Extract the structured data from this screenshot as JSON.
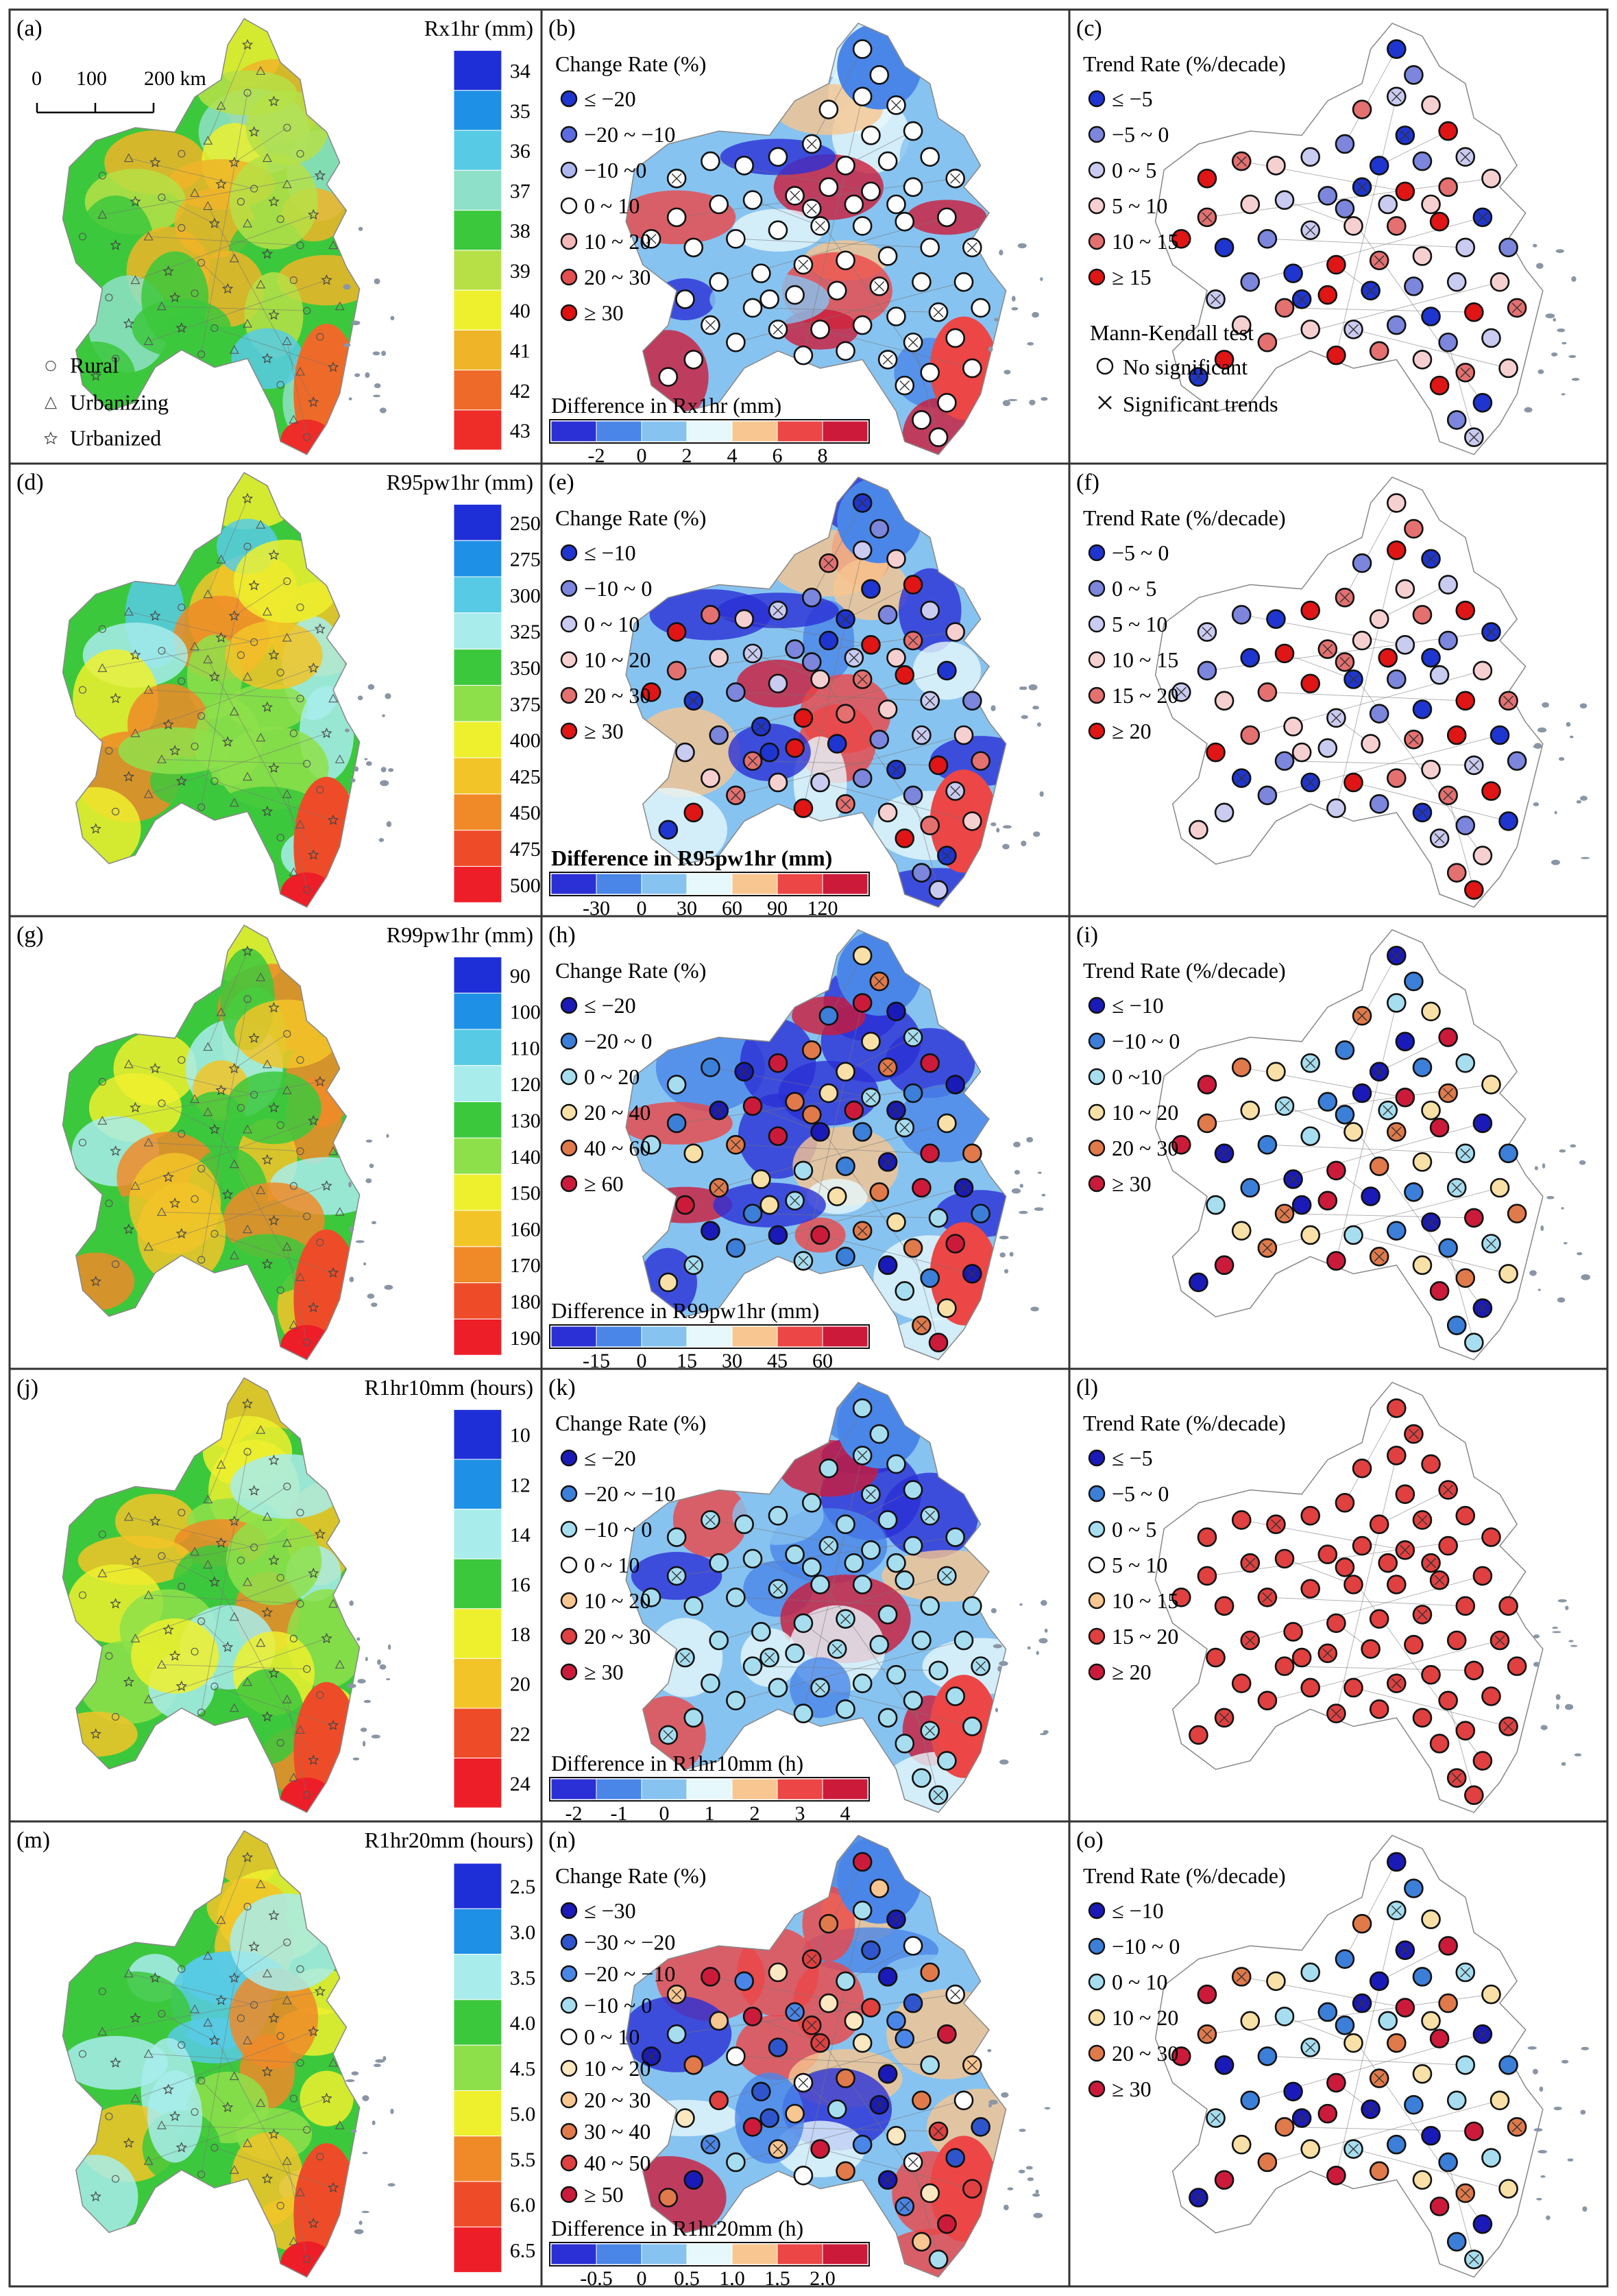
{
  "colors": {
    "frame": "#333333",
    "boundary": "#777777",
    "coast_island": "#8a96a6"
  },
  "panels": [
    {
      "letter": "(a)",
      "kind": "map",
      "variable": "Rx1hr",
      "title": "Rx1hr (mm)",
      "palette": "temp",
      "ticks": [
        "34",
        "35",
        "36",
        "37",
        "38",
        "39",
        "40",
        "41",
        "42",
        "43"
      ],
      "scale": {
        "ticks": [
          "0",
          "100",
          "200 km"
        ]
      },
      "site_legend": [
        "Rural",
        "Urbanizing",
        "Urbanized"
      ]
    },
    {
      "letter": "(b)",
      "kind": "change",
      "title": "Change Rate (%)",
      "items": [
        "≤ −20",
        "−20 ~ −10",
        "−10 ~0",
        "0 ~ 10",
        "10 ~ 20",
        "20 ~ 30",
        "≥ 30"
      ],
      "item_colors": [
        "#1e35d0",
        "#5a6ce0",
        "#aeb8f0",
        "#ffffff",
        "#f4b8b8",
        "#e45050",
        "#e01010"
      ],
      "diff_title": "Difference in Rx1hr (mm)",
      "diff_ticks": [
        "-2",
        "0",
        "2",
        "4",
        "6",
        "8"
      ],
      "diff_colors": [
        "#2b2fd6",
        "#4a86e8",
        "#87c3f0",
        "#e6f8fb",
        "#f8c690",
        "#ec4646",
        "#cc1b3a"
      ]
    },
    {
      "letter": "(c)",
      "kind": "trend",
      "title": "Trend Rate (%/decade)",
      "items": [
        "≤ −5",
        "−5 ~ 0",
        "0 ~ 5",
        "5 ~ 10",
        "10 ~ 15",
        "≥ 15"
      ],
      "item_colors": [
        "#1e35d0",
        "#7b86dc",
        "#c9cbf0",
        "#f6d0d0",
        "#e47070",
        "#e01515"
      ],
      "mk_title": "Mann-Kendall test",
      "mk_items": [
        "No significant",
        "Significant trends"
      ]
    },
    {
      "letter": "(d)",
      "kind": "map",
      "variable": "R95pw1hr",
      "title": "R95pw1hr (mm)",
      "palette": "precip",
      "ticks": [
        "250",
        "275",
        "300",
        "325",
        "350",
        "375",
        "400",
        "425",
        "450",
        "475",
        "500"
      ]
    },
    {
      "letter": "(e)",
      "kind": "change",
      "title": "Change Rate (%)",
      "items": [
        "≤ −10",
        "−10 ~ 0",
        "0 ~ 10",
        "10 ~ 20",
        "20 ~ 30",
        "≥ 30"
      ],
      "item_colors": [
        "#1e35d0",
        "#7b86dc",
        "#c9cbf0",
        "#f6d0d0",
        "#e47070",
        "#e01515"
      ],
      "diff_title": "Difference in R95pw1hr (mm)",
      "diff_bold": true,
      "diff_ticks": [
        "-30",
        "0",
        "30",
        "60",
        "90",
        "120"
      ],
      "diff_colors": [
        "#2b2fd6",
        "#4a86e8",
        "#87c3f0",
        "#e6f8fb",
        "#f8c690",
        "#ec4646",
        "#cc1b3a"
      ]
    },
    {
      "letter": "(f)",
      "kind": "trend",
      "title": "Trend Rate (%/decade)",
      "items": [
        "−5 ~ 0",
        "0 ~ 5",
        "5 ~ 10",
        "10 ~ 15",
        "15 ~ 20",
        "≥ 20"
      ],
      "item_colors": [
        "#1e35d0",
        "#7b86dc",
        "#c9cbf0",
        "#f6d0d0",
        "#e47070",
        "#e01515"
      ]
    },
    {
      "letter": "(g)",
      "kind": "map",
      "variable": "R99pw1hr",
      "title": "R99pw1hr (mm)",
      "palette": "precip",
      "ticks": [
        "90",
        "100",
        "110",
        "120",
        "130",
        "140",
        "150",
        "160",
        "170",
        "180",
        "190"
      ]
    },
    {
      "letter": "(h)",
      "kind": "change",
      "title": "Change Rate (%)",
      "items": [
        "≤ −20",
        "−20 ~ 0",
        "0 ~ 20",
        "20 ~ 40",
        "40 ~ 60",
        "≥ 60"
      ],
      "item_colors": [
        "#1a1ab8",
        "#3b7fd8",
        "#a6def0",
        "#f8e0a6",
        "#e07a4a",
        "#cc1b3a"
      ],
      "diff_title": "Difference in R99pw1hr (mm)",
      "diff_ticks": [
        "-15",
        "0",
        "15",
        "30",
        "45",
        "60"
      ],
      "diff_colors": [
        "#2b2fd6",
        "#4a86e8",
        "#87c3f0",
        "#e6f8fb",
        "#f8c690",
        "#ec4646",
        "#cc1b3a"
      ]
    },
    {
      "letter": "(i)",
      "kind": "trend",
      "title": "Trend Rate (%/decade)",
      "items": [
        "≤ −10",
        "−10 ~ 0",
        "0 ~10",
        "10 ~ 20",
        "20 ~ 30",
        "≥ 30"
      ],
      "item_colors": [
        "#1a1ab8",
        "#3b7fd8",
        "#a6def0",
        "#f8e0a6",
        "#e07a4a",
        "#cc1b3a"
      ]
    },
    {
      "letter": "(j)",
      "kind": "map",
      "variable": "R1hr10mm",
      "title": "R1hr10mm (hours)",
      "palette": "precip",
      "ticks": [
        "10",
        "12",
        "14",
        "16",
        "18",
        "20",
        "22",
        "24"
      ]
    },
    {
      "letter": "(k)",
      "kind": "change",
      "title": "Change Rate (%)",
      "items": [
        "≤ −20",
        "−20 ~ −10",
        "−10 ~ 0",
        "0 ~ 10",
        "10 ~ 20",
        "20 ~ 30",
        "≥ 30"
      ],
      "item_colors": [
        "#1a1ab8",
        "#3b7fd8",
        "#a6def0",
        "#ffffff",
        "#f8c690",
        "#e04040",
        "#cc1b3a"
      ],
      "diff_title": "Difference in R1hr10mm (h)",
      "diff_ticks": [
        "-2",
        "-1",
        "0",
        "1",
        "2",
        "3",
        "4"
      ],
      "diff_colors": [
        "#2b2fd6",
        "#4a86e8",
        "#87c3f0",
        "#e6f8fb",
        "#f8c690",
        "#ec4646",
        "#cc1b3a"
      ]
    },
    {
      "letter": "(l)",
      "kind": "trend",
      "title": "Trend Rate (%/decade)",
      "items": [
        "≤ −5",
        "−5 ~ 0",
        "0 ~ 5",
        "5 ~ 10",
        "10 ~ 15",
        "15 ~ 20",
        "≥ 20"
      ],
      "item_colors": [
        "#1a1ab8",
        "#3b7fd8",
        "#a6def0",
        "#ffffff",
        "#f8c690",
        "#e04040",
        "#cc1b3a"
      ]
    },
    {
      "letter": "(m)",
      "kind": "map",
      "variable": "R1hr20mm",
      "title": "R1hr20mm (hours)",
      "palette": "precip",
      "ticks": [
        "2.5",
        "3.0",
        "3.5",
        "4.0",
        "4.5",
        "5.0",
        "5.5",
        "6.0",
        "6.5"
      ]
    },
    {
      "letter": "(n)",
      "kind": "change",
      "title": "Change Rate (%)",
      "items": [
        "≤ −30",
        "−30 ~ −20",
        "−20 ~ −10",
        "−10 ~ 0",
        "0 ~ 10",
        "10 ~ 20",
        "20 ~ 30",
        "30 ~ 40",
        "40 ~ 50",
        "≥ 50"
      ],
      "item_colors": [
        "#1a1ab8",
        "#2f55cc",
        "#4a86e8",
        "#a6def0",
        "#ffffff",
        "#fbe8c0",
        "#f8c690",
        "#e07a4a",
        "#e04040",
        "#cc1b3a"
      ],
      "diff_title": "Difference in R1hr20mm (h)",
      "diff_ticks": [
        "-0.5",
        "0",
        "0.5",
        "1.0",
        "1.5",
        "2.0"
      ],
      "diff_colors": [
        "#2b2fd6",
        "#4a86e8",
        "#87c3f0",
        "#e6f8fb",
        "#f8c690",
        "#ec4646",
        "#cc1b3a"
      ]
    },
    {
      "letter": "(o)",
      "kind": "trend",
      "title": "Trend Rate (%/decade)",
      "items": [
        "≤ −10",
        "−10 ~ 0",
        "0 ~ 10",
        "10 ~ 20",
        "20 ~ 30",
        "≥ 30"
      ],
      "item_colors": [
        "#1a1ab8",
        "#3b7fd8",
        "#a6def0",
        "#f8e0a6",
        "#e07a4a",
        "#cc1b3a"
      ]
    }
  ]
}
